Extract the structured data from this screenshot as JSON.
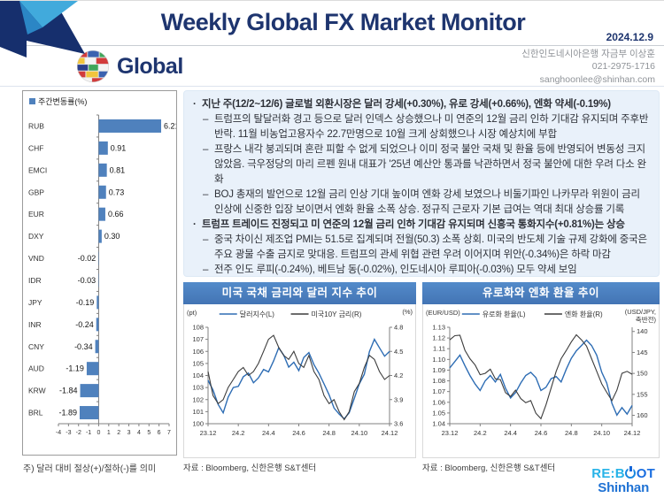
{
  "header": {
    "title": "Weekly Global FX Market Monitor",
    "date": "2024.12.9",
    "brand": "Global",
    "contact_org": "신한인도네시아은행 자금부 이상훈",
    "contact_phone": "021-2975-1716",
    "contact_email": "sanghoonlee@shinhan.com"
  },
  "commentary": {
    "items": [
      {
        "level": 1,
        "text": "지난 주(12/2~12/6) 글로벌 외환시장은 달러 강세(+0.30%), 유로 강세(+0.66%), 엔화 약세(-0.19%)"
      },
      {
        "level": 2,
        "text": "트럼프의 탈달러화 경고 등으로 달러 인덱스 상승했으나 미 연준의 12월 금리 인하 기대감 유지되며 주후반 반락. 11월 비농업고용자수 22.7만명으로 10월 크게 상회했으나 시장 예상치에 부합"
      },
      {
        "level": 2,
        "text": "프랑스 내각 붕괴되며 혼란 피할 수 없게 되었으나 이미 정국 불안 국채 및 환율 등에 반영되어 변동성 크지 않았음. 극우정당의 마리 르펜 원내 대표가 '25년 예산안 통과를 낙관하면서 정국 불안에 대한 우려 다소 완화"
      },
      {
        "level": 2,
        "text": "BOJ 총재의 발언으로 12월 금리 인상 기대 높이며 엔화 강세 보였으나 비둘기파인 나카무라 위원이 금리 인상에 신중한 입장 보이면서 엔화 환율 소폭 상승. 정규직 근로자 기본 급여는 역대 최대 상승률 기록"
      },
      {
        "level": 1,
        "text": "트럼프 트레이드 진정되고 미 연준의 12월 금리 인하 기대감 유지되며 신흥국 통화지수(+0.81%)는 상승"
      },
      {
        "level": 2,
        "text": "중국 차이신 제조업 PMI는 51.5로 집계되며 전월(50.3) 소폭 상회. 미국의 반도체 기술 규제 강화에 중국은 주요 광물 수출 금지로 맞대응. 트럼프의 관세 위협 관련 우려 이어지며 위안(-0.34%)은 하락 마감"
      },
      {
        "level": 2,
        "text": "전주 인도 루피(-0.24%), 베트남 동(-0.02%), 인도네시아 루피아(-0.03%) 모두 약세 보임"
      }
    ]
  },
  "chart_data": [
    {
      "id": "weekly-change",
      "type": "bar",
      "orientation": "horizontal",
      "legend": "주간변동률(%)",
      "note": "주) 달러 대비 절상(+)/절하(-)를 의미",
      "categories": [
        "RUB",
        "CHF",
        "EMCI",
        "GBP",
        "EUR",
        "DXY",
        "VND",
        "IDR",
        "JPY",
        "INR",
        "CNY",
        "AUD",
        "KRW",
        "BRL"
      ],
      "values": [
        6.21,
        0.91,
        0.81,
        0.73,
        0.66,
        0.3,
        -0.02,
        -0.03,
        -0.19,
        -0.24,
        -0.34,
        -1.19,
        -1.84,
        -1.89
      ],
      "xlim": [
        -4,
        7
      ],
      "xticks": [
        -4,
        -3,
        -2,
        -1,
        0,
        1,
        2,
        3,
        4,
        5,
        6,
        7
      ],
      "bar_color": "#4f81bd"
    },
    {
      "id": "us-rates-dollar",
      "type": "line",
      "title": "미국 국채 금리와 달러 지수 추이",
      "source": "자료 : Bloomberg, 신한은행 S&T센터",
      "left_unit": "(pt)",
      "right_unit": "(%)",
      "left_ylim": [
        100,
        108
      ],
      "left_yticks": [
        "100",
        "101",
        "102",
        "103",
        "104",
        "105",
        "106",
        "107",
        "108"
      ],
      "right_ylim": [
        3.6,
        4.8
      ],
      "right_yticks": [
        "3.6",
        "3.9",
        "4.2",
        "4.5",
        "4.8"
      ],
      "right_inverted": false,
      "xlim": [
        0,
        12
      ],
      "x_ticks": [
        0,
        2,
        4,
        6,
        8,
        10,
        12
      ],
      "x_ticklabels": [
        "23.12",
        "24.2",
        "24.4",
        "24.6",
        "24.8",
        "24.10",
        "24.12"
      ],
      "x": [
        0,
        0.33,
        0.67,
        1,
        1.33,
        1.67,
        2,
        2.33,
        2.67,
        3,
        3.33,
        3.67,
        4,
        4.33,
        4.67,
        5,
        5.33,
        5.67,
        6,
        6.33,
        6.67,
        7,
        7.33,
        7.67,
        8,
        8.33,
        8.67,
        9,
        9.33,
        9.67,
        10,
        10.33,
        10.67,
        11,
        11.33,
        11.67,
        12
      ],
      "series": [
        {
          "name": "달러지수(L)",
          "axis": "left",
          "color": "#2e6db4",
          "values": [
            103.6,
            102.8,
            101.6,
            100.9,
            102.2,
            103.0,
            103.1,
            103.9,
            104.2,
            103.4,
            103.8,
            104.5,
            104.3,
            105.2,
            106.3,
            105.7,
            104.7,
            105.1,
            104.4,
            105.5,
            105.9,
            104.9,
            104.2,
            103.3,
            102.4,
            101.3,
            100.8,
            100.4,
            100.9,
            102.1,
            103.3,
            104.1,
            106.0,
            107.0,
            106.3,
            105.6,
            106.0
          ]
        },
        {
          "name": "미국10Y 금리(R)",
          "axis": "right",
          "color": "#3c3c3c",
          "values": [
            4.25,
            3.95,
            3.85,
            3.9,
            4.05,
            4.15,
            4.25,
            4.3,
            4.2,
            4.25,
            4.35,
            4.5,
            4.65,
            4.7,
            4.55,
            4.45,
            4.4,
            4.5,
            4.35,
            4.3,
            4.45,
            4.25,
            4.15,
            3.95,
            3.85,
            3.9,
            3.75,
            3.65,
            3.75,
            4.0,
            4.1,
            4.3,
            4.45,
            4.4,
            4.25,
            4.15,
            4.2
          ]
        }
      ]
    },
    {
      "id": "eur-jpy",
      "type": "line",
      "title": "유로화와 엔화 환율 추이",
      "source": "자료 : Bloomberg, 신한은행 S&T센터",
      "left_unit": "(EUR/USD)",
      "right_unit": "(USD/JPY,|축반전)",
      "left_ylim": [
        1.04,
        1.13
      ],
      "left_yticks": [
        "1.04",
        "1.05",
        "1.06",
        "1.07",
        "1.08",
        "1.09",
        "1.10",
        "1.11",
        "1.12",
        "1.13"
      ],
      "right_ylim": [
        139,
        162
      ],
      "right_yticks": [
        "140",
        "145",
        "150",
        "155",
        "160"
      ],
      "right_inverted": true,
      "xlim": [
        0,
        12
      ],
      "x_ticks": [
        0,
        2,
        4,
        6,
        8,
        10,
        12
      ],
      "x_ticklabels": [
        "23.12",
        "24.2",
        "24.4",
        "24.6",
        "24.8",
        "24.10",
        "24.12"
      ],
      "x": [
        0,
        0.33,
        0.67,
        1,
        1.33,
        1.67,
        2,
        2.33,
        2.67,
        3,
        3.33,
        3.67,
        4,
        4.33,
        4.67,
        5,
        5.33,
        5.67,
        6,
        6.33,
        6.67,
        7,
        7.33,
        7.67,
        8,
        8.33,
        8.67,
        9,
        9.33,
        9.67,
        10,
        10.33,
        10.67,
        11,
        11.33,
        11.67,
        12
      ],
      "series": [
        {
          "name": "유로화 환율(L)",
          "axis": "left",
          "color": "#2e6db4",
          "values": [
            1.092,
            1.098,
            1.104,
            1.094,
            1.085,
            1.077,
            1.071,
            1.08,
            1.085,
            1.079,
            1.086,
            1.073,
            1.064,
            1.069,
            1.078,
            1.085,
            1.088,
            1.083,
            1.071,
            1.074,
            1.082,
            1.084,
            1.079,
            1.091,
            1.101,
            1.108,
            1.113,
            1.118,
            1.113,
            1.104,
            1.088,
            1.078,
            1.059,
            1.048,
            1.055,
            1.049,
            1.057
          ]
        },
        {
          "name": "엔화 환율(R)",
          "axis": "right",
          "color": "#3c3c3c",
          "values": [
            142.0,
            141.0,
            140.9,
            144.5,
            146.5,
            148.0,
            150.3,
            150.0,
            149.0,
            151.3,
            151.5,
            154.6,
            155.5,
            154.0,
            156.0,
            157.0,
            156.5,
            159.5,
            160.8,
            157.5,
            153.5,
            149.5,
            146.5,
            144.5,
            142.5,
            140.8,
            142.0,
            143.5,
            146.5,
            149.5,
            152.5,
            154.5,
            156.5,
            154.0,
            150.0,
            149.5,
            150.2
          ]
        }
      ]
    }
  ],
  "footer_logo": {
    "line1_a": "RE:B",
    "line1_b": "OT",
    "line2": "Shinhan"
  }
}
